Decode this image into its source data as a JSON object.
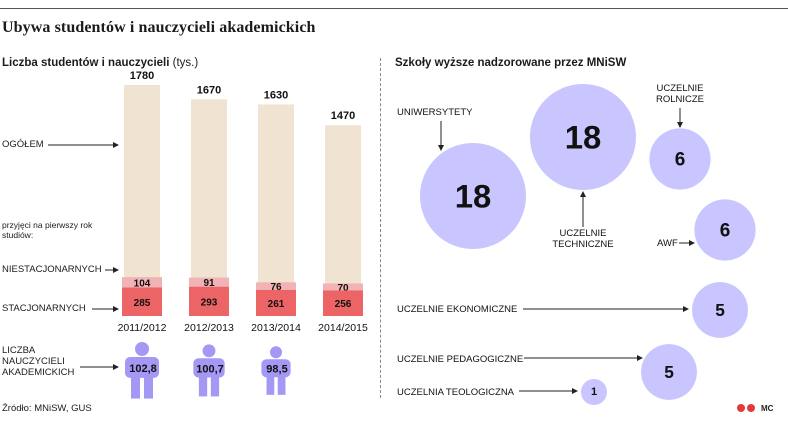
{
  "title": "Ubywa studentów i nauczycieli akademickich",
  "left_panel": {
    "title": "Liczba studentów i nauczycieli",
    "unit": "(tys.)",
    "label_total": "OGÓŁEM",
    "label_first_year": "przyjęci na pierwszy rok studiów:",
    "label_part_time": "NIESTACJONARNYCH",
    "label_full_time": "STACJONARNYCH",
    "label_teachers": "LICZBA NAUCZYCIELI AKADEMICKICH",
    "source": "Źródło: MNiSW, GUS"
  },
  "right_panel": {
    "title": "Szkoły wyższe nadzorowane przez MNiSW"
  },
  "colors": {
    "total_bar": "#f0e3d2",
    "part_time": "#f2b3b6",
    "full_time": "#ec6466",
    "teacher_icon": "#a399f5",
    "bubble": "#c9c5ff"
  },
  "logo_text": "MC",
  "chart_data": [
    {
      "type": "bar",
      "categories": [
        "2011/2012",
        "2012/2013",
        "2013/2014",
        "2014/2015"
      ],
      "series": [
        {
          "name": "OGÓŁEM",
          "values": [
            1780,
            1670,
            1630,
            1470
          ]
        },
        {
          "name": "NIESTACJONARNYCH",
          "values": [
            104,
            91,
            76,
            70
          ]
        },
        {
          "name": "STACJONARNYCH",
          "values": [
            285,
            293,
            261,
            256
          ]
        },
        {
          "name": "LICZBA NAUCZYCIELI AKADEMICKICH",
          "values": [
            "102,8",
            "100,7",
            "98,5",
            ""
          ]
        }
      ]
    },
    {
      "type": "bubble",
      "items": [
        {
          "label": "UNIWERSYTETY",
          "value": 18
        },
        {
          "label": "UCZELNIE TECHNICZNE",
          "value": 18
        },
        {
          "label": "UCZELNIE ROLNICZE",
          "value": 6
        },
        {
          "label": "AWF",
          "value": 6
        },
        {
          "label": "UCZELNIE EKONOMICZNE",
          "value": 5
        },
        {
          "label": "UCZELNIE PEDAGOGICZNE",
          "value": 5
        },
        {
          "label": "UCZELNIA TEOLOGICZNA",
          "value": 1
        }
      ]
    }
  ]
}
